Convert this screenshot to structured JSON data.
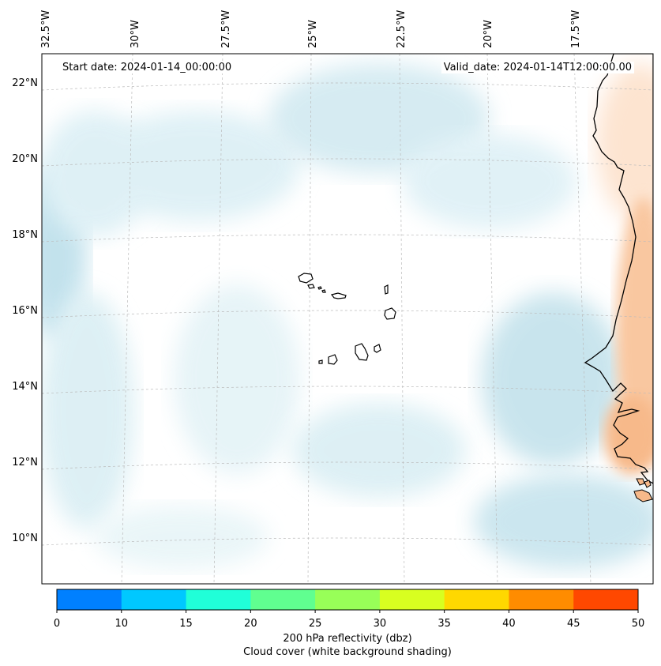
{
  "map": {
    "start_date": "Start date: 2024-01-14_00:00:00",
    "valid_date": "Valid_date: 2024-01-14T12:00:00.00",
    "lon_labels": [
      "32.5°W",
      "30°W",
      "27.5°W",
      "25°W",
      "22.5°W",
      "20°W",
      "17.5°W"
    ],
    "lat_labels": [
      "22°N",
      "20°N",
      "18°N",
      "16°N",
      "14°N",
      "12°N",
      "10°N"
    ],
    "features": [
      "Cape Verde islands",
      "West African coastline (Mauritania, Senegal, Gambia, Guinea-Bissau)"
    ]
  },
  "colorbar": {
    "ticks": [
      "0",
      "10",
      "15",
      "20",
      "25",
      "30",
      "35",
      "40",
      "45",
      "50"
    ],
    "colors": [
      "#0080ff",
      "#00c8ff",
      "#20ffd8",
      "#60ff90",
      "#98ff58",
      "#d8ff20",
      "#ffd800",
      "#ff8c00",
      "#ff4800"
    ],
    "label": "200 hPa reflectivity (dbz)",
    "sublabel": "Cloud cover (white background shading)"
  },
  "colors": {
    "cloud_light": "#d4ebf2",
    "cloud_mid": "#b8dde9",
    "land_orange": "#f7b98a",
    "grid": "#bbbbbb"
  }
}
